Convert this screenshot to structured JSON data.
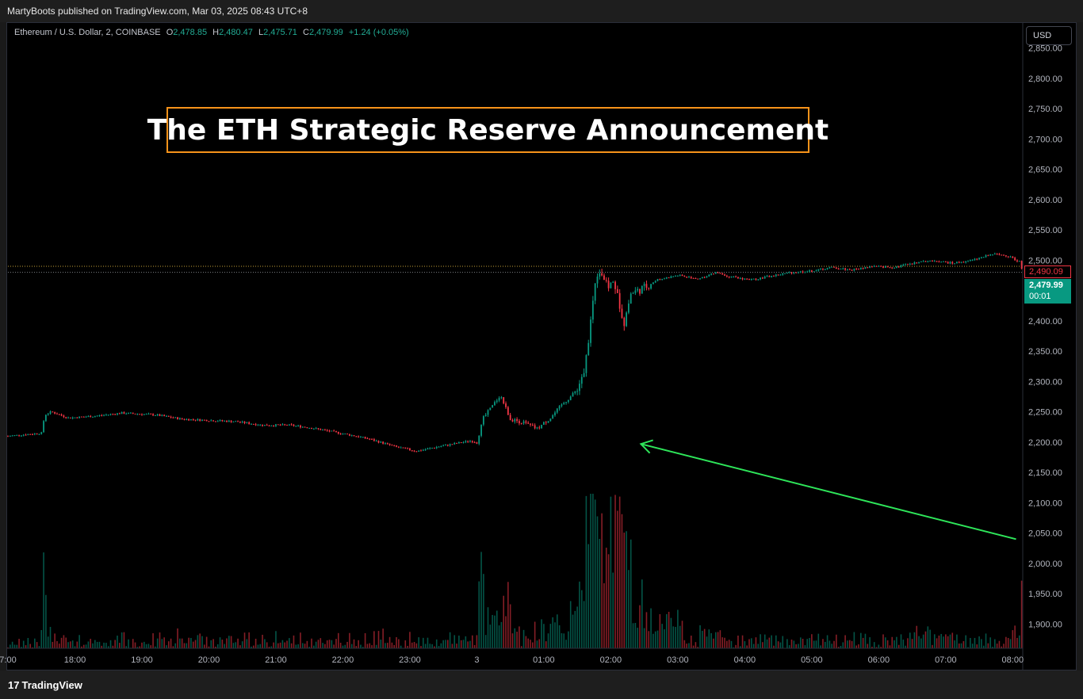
{
  "topbar": {
    "published": "MartyBoots published on TradingView.com, Mar 03, 2025 08:43 UTC+8"
  },
  "legend": {
    "symbol": "Ethereum / U.S. Dollar, 2, COINBASE",
    "o_label": "O",
    "o_value": "2,478.85",
    "h_label": "H",
    "h_value": "2,480.47",
    "l_label": "L",
    "l_value": "2,475.71",
    "c_label": "C",
    "c_value": "2,479.99",
    "change": "+1.24 (+0.05%)"
  },
  "currency_button": "USD",
  "headline": "The ETH Strategic Reserve Announcement",
  "price_tags": {
    "reference": "2,490.09",
    "last": "2,479.99",
    "countdown": "00:01"
  },
  "branding": {
    "logo_mark": "17",
    "logo_text": "TradingView"
  },
  "colors": {
    "up": "#089981",
    "down": "#f23645",
    "background": "#000000",
    "frame": "#1e1e1e",
    "headline_border": "#f7931a",
    "arrow": "#2ee65a"
  },
  "chart_data": {
    "type": "candlestick",
    "symbol": "ETHUSD",
    "exchange": "COINBASE",
    "timeframe": "2",
    "ylim": [
      1860,
      2890
    ],
    "y_ticks": [
      1900,
      1950,
      2000,
      2050,
      2100,
      2150,
      2200,
      2250,
      2300,
      2350,
      2400,
      2450,
      2500,
      2550,
      2600,
      2650,
      2700,
      2750,
      2800,
      2850
    ],
    "y_tick_labels": [
      "1,900.00",
      "1,950.00",
      "2,000.00",
      "2,050.00",
      "2,100.00",
      "2,150.00",
      "2,200.00",
      "2,250.00",
      "2,300.00",
      "2,350.00",
      "2,400.00",
      "2,450.00",
      "2,500.00",
      "2,550.00",
      "2,600.00",
      "2,650.00",
      "2,700.00",
      "2,750.00",
      "2,800.00",
      "2,850.00"
    ],
    "x_range_hours": [
      17,
      32.15
    ],
    "x_ticks": [
      17,
      18,
      19,
      20,
      21,
      22,
      23,
      24,
      25,
      26,
      27,
      28,
      29,
      30,
      31,
      32
    ],
    "x_tick_labels": [
      "7:00",
      "18:00",
      "19:00",
      "20:00",
      "21:00",
      "22:00",
      "23:00",
      "3",
      "01:00",
      "02:00",
      "03:00",
      "04:00",
      "05:00",
      "06:00",
      "07:00",
      "08:00"
    ],
    "price_path": [
      [
        17.0,
        2210
      ],
      [
        17.5,
        2215
      ],
      [
        17.55,
        2245
      ],
      [
        17.65,
        2250
      ],
      [
        17.9,
        2240
      ],
      [
        18.3,
        2243
      ],
      [
        18.7,
        2248
      ],
      [
        19.2,
        2245
      ],
      [
        19.6,
        2238
      ],
      [
        20.0,
        2236
      ],
      [
        20.4,
        2234
      ],
      [
        20.8,
        2228
      ],
      [
        21.2,
        2228
      ],
      [
        21.5,
        2224
      ],
      [
        21.8,
        2218
      ],
      [
        22.1,
        2212
      ],
      [
        22.4,
        2205
      ],
      [
        22.8,
        2192
      ],
      [
        23.1,
        2185
      ],
      [
        23.4,
        2192
      ],
      [
        23.7,
        2198
      ],
      [
        23.9,
        2202
      ],
      [
        24.0,
        2200
      ],
      [
        24.1,
        2240
      ],
      [
        24.25,
        2262
      ],
      [
        24.35,
        2278
      ],
      [
        24.5,
        2238
      ],
      [
        24.7,
        2232
      ],
      [
        24.9,
        2222
      ],
      [
        25.1,
        2240
      ],
      [
        25.3,
        2265
      ],
      [
        25.45,
        2280
      ],
      [
        25.6,
        2310
      ],
      [
        25.7,
        2400
      ],
      [
        25.78,
        2478
      ],
      [
        25.85,
        2482
      ],
      [
        25.95,
        2455
      ],
      [
        26.05,
        2465
      ],
      [
        26.1,
        2440
      ],
      [
        26.2,
        2398
      ],
      [
        26.3,
        2445
      ],
      [
        26.5,
        2455
      ],
      [
        26.7,
        2468
      ],
      [
        27.0,
        2475
      ],
      [
        27.3,
        2470
      ],
      [
        27.6,
        2480
      ],
      [
        27.8,
        2472
      ],
      [
        28.1,
        2468
      ],
      [
        28.4,
        2474
      ],
      [
        28.7,
        2480
      ],
      [
        29.0,
        2482
      ],
      [
        29.3,
        2488
      ],
      [
        29.6,
        2484
      ],
      [
        29.9,
        2490
      ],
      [
        30.2,
        2488
      ],
      [
        30.5,
        2495
      ],
      [
        30.8,
        2500
      ],
      [
        31.1,
        2495
      ],
      [
        31.4,
        2500
      ],
      [
        31.7,
        2510
      ],
      [
        31.9,
        2508
      ],
      [
        32.1,
        2498
      ],
      [
        32.15,
        2479.99
      ]
    ],
    "last_price": 2479.99,
    "reference_price": 2490.09,
    "volume_spikes": [
      [
        25.7,
        0.5
      ],
      [
        25.82,
        0.95
      ],
      [
        26.05,
        1.0
      ],
      [
        26.15,
        0.85
      ],
      [
        24.35,
        0.25
      ],
      [
        25.55,
        0.35
      ],
      [
        26.5,
        0.2
      ],
      [
        26.9,
        0.25
      ],
      [
        27.5,
        0.15
      ],
      [
        30.6,
        0.15
      ],
      [
        31.0,
        0.1
      ],
      [
        32.1,
        0.12
      ]
    ],
    "annotation_arrow": {
      "from": [
        32.05,
        2040
      ],
      "to": [
        26.45,
        2197
      ]
    }
  }
}
